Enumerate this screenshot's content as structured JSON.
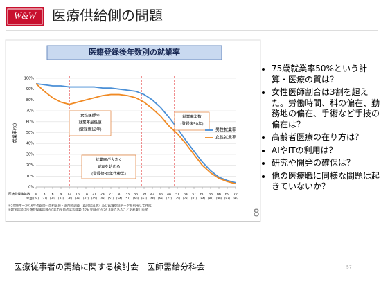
{
  "header": {
    "logo": "W&W",
    "title": "医療供給側の問題"
  },
  "chart_data": {
    "type": "line",
    "title": "医籍登録後年数別の就業率",
    "ylabel": "就業率(%)",
    "x": [
      0,
      3,
      6,
      9,
      12,
      15,
      18,
      21,
      24,
      27,
      30,
      33,
      36,
      39,
      42,
      45,
      48,
      51,
      54,
      57,
      60,
      63,
      66,
      69,
      72
    ],
    "xticks": [
      0,
      3,
      6,
      9,
      12,
      15,
      18,
      21,
      24,
      27,
      30,
      33,
      36,
      39,
      42,
      45,
      48,
      51,
      54,
      57,
      60,
      63,
      66,
      69,
      72
    ],
    "xlim": [
      0,
      72
    ],
    "xrow_label": "医籍登録後年数",
    "age_row_label": "年齢",
    "age_labels": [
      "(24)",
      "(27)",
      "(30)",
      "(33)",
      "(36)",
      "(39)",
      "(42)",
      "(45)",
      "(48)",
      "(51)",
      "(54)",
      "(57)",
      "(60)",
      "(63)",
      "(66)",
      "(69)",
      "(72)",
      "(75)",
      "(78)",
      "(81)",
      "(84)",
      "(87)",
      "(90)",
      "(93)",
      "(96)"
    ],
    "ylim": [
      0,
      100
    ],
    "yticks": [
      {
        "value": 0,
        "label": "0%"
      },
      {
        "value": 10,
        "label": "10%"
      },
      {
        "value": 20,
        "label": "20%"
      },
      {
        "value": 30,
        "label": "30%"
      },
      {
        "value": 40,
        "label": "40%"
      },
      {
        "value": 50,
        "label": "50%"
      },
      {
        "value": 60,
        "label": "60%"
      },
      {
        "value": 70,
        "label": "70%"
      },
      {
        "value": 80,
        "label": "80%"
      },
      {
        "value": 90,
        "label": "90%"
      },
      {
        "value": 100,
        "label": "100%"
      }
    ],
    "grid": true,
    "series": [
      {
        "name": "男性就業率",
        "color": "#4a8fd6",
        "values": [
          95,
          94,
          93,
          93,
          92,
          92,
          92,
          92,
          91,
          91,
          90,
          89,
          88,
          85,
          80,
          73,
          64,
          54,
          43,
          33,
          23,
          15,
          9,
          6,
          4
        ]
      },
      {
        "name": "女性就業率",
        "color": "#f08a24",
        "values": [
          95,
          88,
          82,
          78,
          76,
          78,
          80,
          82,
          84,
          85,
          85,
          84,
          82,
          78,
          72,
          65,
          56,
          49,
          40,
          30,
          20,
          13,
          8,
          5,
          3
        ]
      }
    ],
    "reference_lines": {
      "color": "#e02020",
      "x": [
        12,
        38,
        50
      ]
    },
    "annotations": [
      [
        "女性医師の",
        "就業率最低値",
        "(登録後12年)"
      ],
      [
        "就業率が大きく",
        "減衰を始める",
        "(登録後30年代後半)"
      ],
      [
        "就業率半数",
        "(登録後50年)"
      ]
    ],
    "footnotes": [
      "※2006年～2016年の医師・歯科医師・薬剤師調査（医師届出票）及び医籍登録データを利用して作成",
      "※推定年齢は医籍登録後年数が0年の医師の平均年齢(12月末時点)が26.8歳であることを考慮し設定"
    ],
    "slide_number": "8"
  },
  "bullets": [
    "75歳就業率50%という計算・医療の質は？",
    "女性医師割合は3割を超えた。労働時間、科の偏在、勤務地の偏在、手術など手技の偏在は？",
    "高齢者医療の在り方は？",
    "AIやITの利用は？",
    "研究や開発の確保は？",
    "他の医療職に同様な問題は起きていないか？"
  ],
  "footer": {
    "source": "医療従事者の需給に関する検討会　医師需給分科会",
    "page": "57"
  }
}
